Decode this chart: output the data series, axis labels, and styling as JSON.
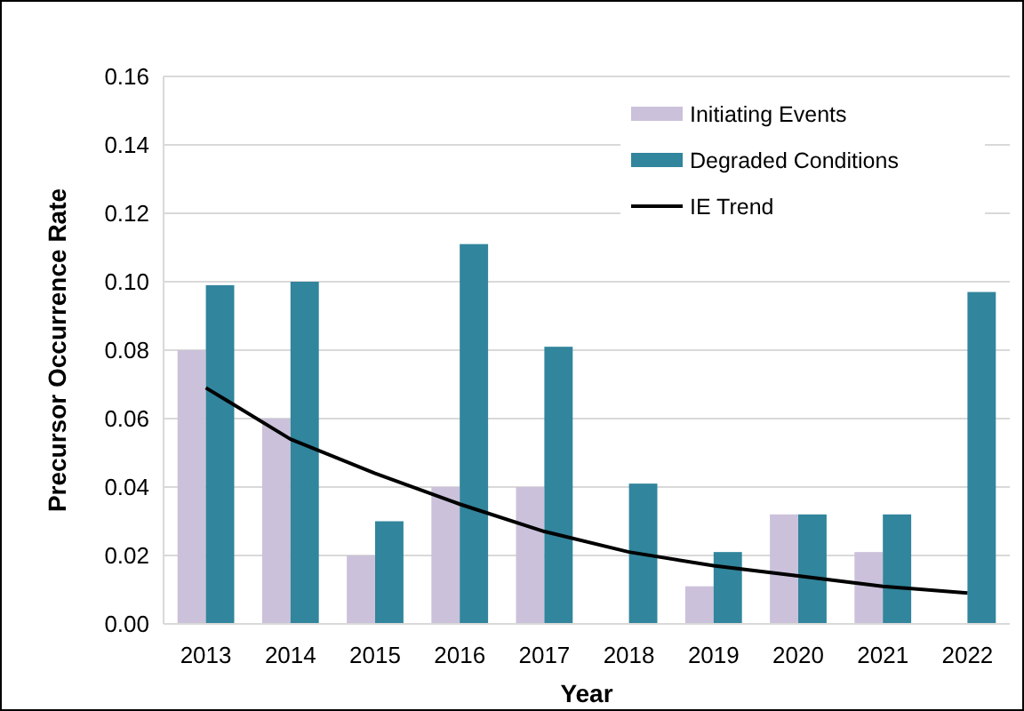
{
  "chart_data": {
    "type": "bar",
    "xlabel": "Year",
    "ylabel": "Precursor Occurrence Rate",
    "categories": [
      "2013",
      "2014",
      "2015",
      "2016",
      "2017",
      "2018",
      "2019",
      "2020",
      "2021",
      "2022"
    ],
    "series": [
      {
        "name": "Initiating Events",
        "color": "#ccc1da",
        "values": [
          0.08,
          0.06,
          0.02,
          0.04,
          0.04,
          0,
          0.011,
          0.032,
          0.021,
          0
        ]
      },
      {
        "name": "Degraded Conditions",
        "color": "#31859c",
        "values": [
          0.099,
          0.1,
          0.03,
          0.111,
          0.081,
          0.041,
          0.021,
          0.032,
          0.032,
          0.097
        ]
      },
      {
        "name": "IE Trend",
        "type": "line",
        "color": "#000000",
        "values": [
          0.069,
          0.054,
          0.044,
          0.035,
          0.027,
          0.021,
          0.017,
          0.014,
          0.011,
          0.009
        ]
      }
    ],
    "ylim": [
      0,
      0.16
    ],
    "yticks": [
      {
        "value": 0,
        "label": "0.00"
      },
      0.02,
      0.04,
      0.06,
      0.08,
      {
        "value": 0.1,
        "label": "0.10"
      },
      0.12,
      0.14,
      0.16
    ],
    "grid": "y",
    "legend": "top right"
  }
}
